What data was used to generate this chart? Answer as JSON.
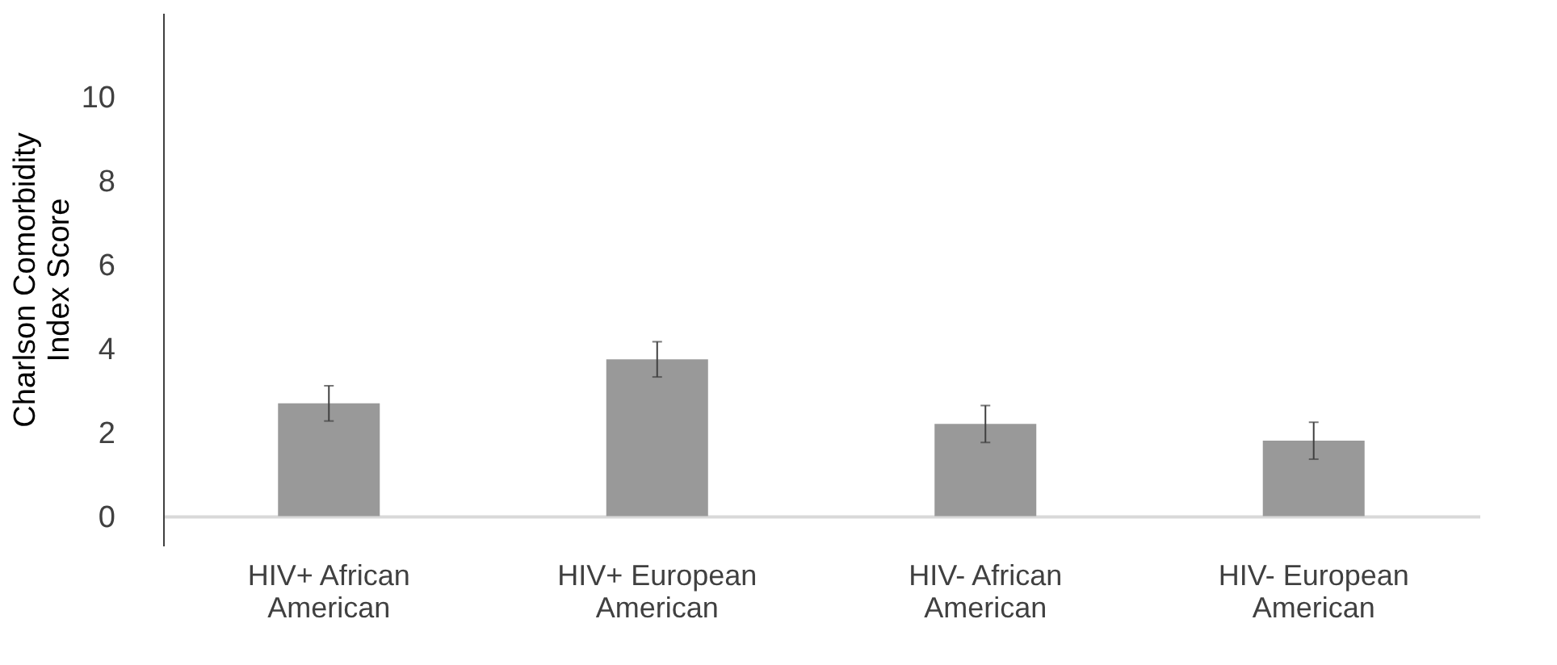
{
  "chart_data": {
    "type": "bar",
    "categories": [
      "HIV+ African American",
      "HIV+ European American",
      "HIV- African American",
      "HIV- European American"
    ],
    "values": [
      2.69,
      3.74,
      2.2,
      1.8
    ],
    "errors": [
      0.42,
      0.42,
      0.44,
      0.44
    ],
    "color": "#999999",
    "ylabel": "Charlson Comorbidity Index Score",
    "ylim": [
      -0.7,
      12
    ],
    "yticks": [
      0,
      2,
      4,
      6,
      8,
      10
    ],
    "grid": false
  }
}
